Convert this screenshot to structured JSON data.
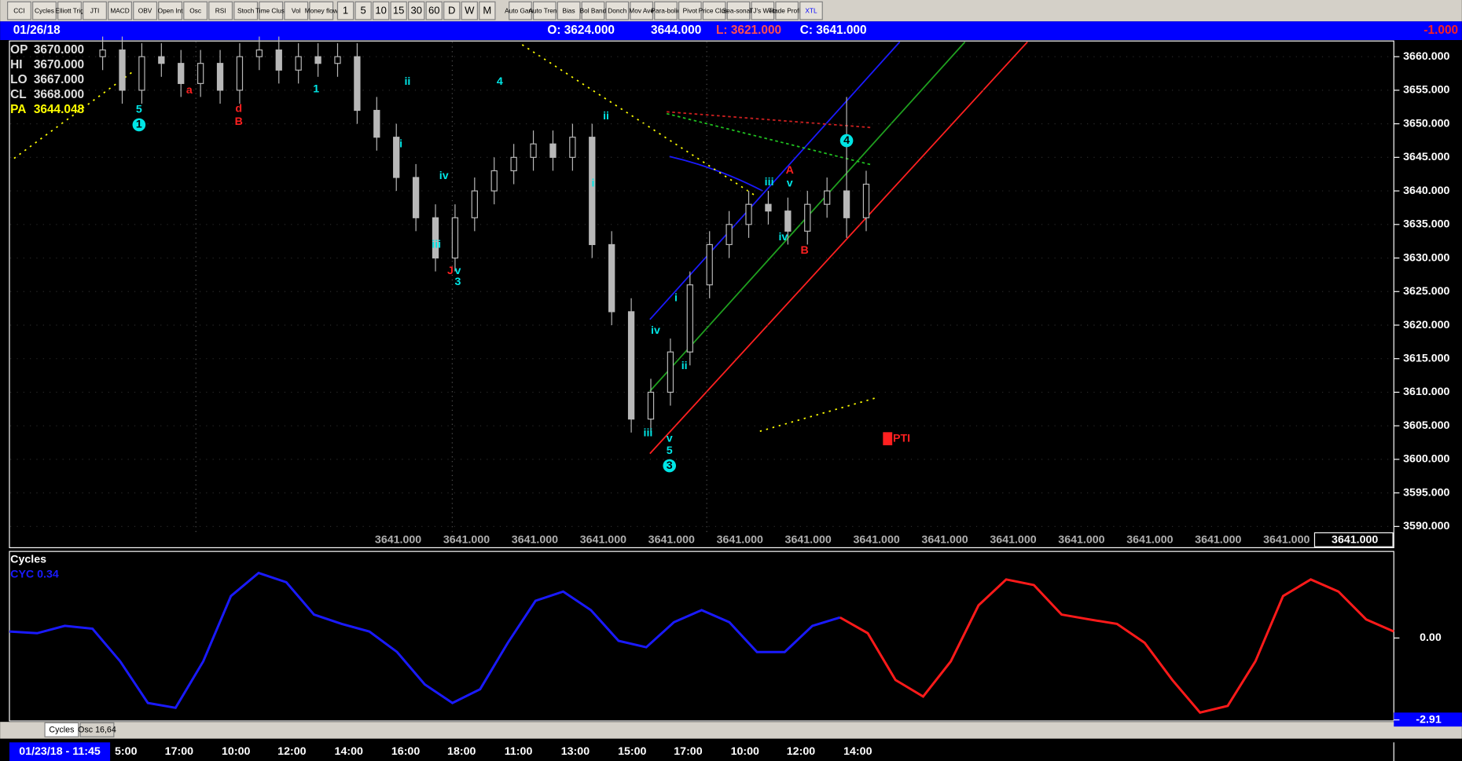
{
  "toolbar": {
    "indicators": [
      "CCI",
      "Cycles",
      "Elliott Trig",
      "JTI",
      "MACD",
      "OBV",
      "Open Int",
      "Osc",
      "RSI",
      "Stoch",
      "Time Clust",
      "Vol",
      "Money flow"
    ],
    "intervals": [
      "1",
      "5",
      "10",
      "15",
      "30",
      "60",
      "D",
      "W",
      "M"
    ],
    "studies": [
      "Auto Gann",
      "Auto Trend",
      "Bias",
      "Bol Band",
      "Donch",
      "Mov Ave",
      "Para-bolic",
      "Pivot",
      "Price Clust",
      "Sea-sonals",
      "TJ's Web",
      "Trade Profile",
      "XTL"
    ]
  },
  "header": {
    "date": "01/26/18",
    "open": "O: 3624.000",
    "high": "3644.000",
    "low": "L: 3621.000",
    "close": "C: 3641.000",
    "change": "-1.000"
  },
  "info": [
    {
      "label": "OP",
      "value": "3670.000"
    },
    {
      "label": "HI",
      "value": "3670.000"
    },
    {
      "label": "LO",
      "value": "3667.000"
    },
    {
      "label": "CL",
      "value": "3668.000"
    },
    {
      "label": "PA",
      "value": "3644.048"
    }
  ],
  "annotations": [
    {
      "text": "5",
      "color": "#00e5e5"
    },
    {
      "text": "1",
      "color": "#00e5e5"
    },
    {
      "text": "a",
      "color": "#ff2020"
    },
    {
      "text": "d",
      "color": "#ff2020"
    },
    {
      "text": "B",
      "color": "#ff2020"
    },
    {
      "text": "1",
      "color": "#00e5e5"
    },
    {
      "text": "ii",
      "color": "#00e5e5"
    },
    {
      "text": "i",
      "color": "#00e5e5"
    },
    {
      "text": "4",
      "color": "#00e5e5"
    },
    {
      "text": "iv",
      "color": "#00e5e5"
    },
    {
      "text": "iii",
      "color": "#00e5e5"
    },
    {
      "text": "J",
      "color": "#ff2020"
    },
    {
      "text": "v",
      "color": "#00e5e5"
    },
    {
      "text": "3",
      "color": "#00e5e5"
    },
    {
      "text": "ii",
      "color": "#00e5e5"
    },
    {
      "text": "i",
      "color": "#00e5e5"
    },
    {
      "text": "iv",
      "color": "#00e5e5"
    },
    {
      "text": "iii",
      "color": "#00e5e5"
    },
    {
      "text": "ii",
      "color": "#00e5e5"
    },
    {
      "text": "i",
      "color": "#00e5e5"
    },
    {
      "text": "v",
      "color": "#00e5e5"
    },
    {
      "text": "5",
      "color": "#00e5e5"
    },
    {
      "text": "3",
      "color": "#00e5e5"
    },
    {
      "text": "iii",
      "color": "#00e5e5"
    },
    {
      "text": "A",
      "color": "#ff2020"
    },
    {
      "text": "v",
      "color": "#00e5e5"
    },
    {
      "text": "iv",
      "color": "#00e5e5"
    },
    {
      "text": "B",
      "color": "#ff2020"
    },
    {
      "text": "4",
      "color": "#00e5e5"
    },
    {
      "text": "PTI",
      "color": "#ff2020"
    }
  ],
  "tabs": [
    "Cycles",
    "Osc 16,64"
  ],
  "chart_data": [
    {
      "type": "candlestick",
      "color": "#b8b8b8",
      "grid": true,
      "open": [
        3660,
        3661,
        3655,
        3660,
        3659,
        3656,
        3659,
        3655,
        3660,
        3661,
        3658,
        3660,
        3659,
        3660,
        3652,
        3648,
        3642,
        3636,
        3630,
        3636,
        3640,
        3643,
        3645,
        3647,
        3645,
        3648,
        3632,
        3622,
        3606,
        3610,
        3616,
        3626,
        3632,
        3635,
        3638,
        3637,
        3634,
        3638,
        3640,
        3636
      ],
      "high": [
        3663,
        3663,
        3662,
        3662,
        3661,
        3661,
        3661,
        3662,
        3663,
        3663,
        3662,
        3662,
        3662,
        3662,
        3654,
        3650,
        3644,
        3638,
        3638,
        3642,
        3645,
        3647,
        3649,
        3649,
        3650,
        3650,
        3634,
        3624,
        3612,
        3618,
        3628,
        3634,
        3637,
        3640,
        3640,
        3639,
        3640,
        3642,
        3654,
        3643
      ],
      "low": [
        3658,
        3653,
        3653,
        3657,
        3654,
        3654,
        3653,
        3653,
        3658,
        3656,
        3656,
        3657,
        3657,
        3650,
        3646,
        3640,
        3634,
        3628,
        3628,
        3634,
        3638,
        3641,
        3643,
        3643,
        3643,
        3630,
        3620,
        3604,
        3604,
        3608,
        3614,
        3624,
        3630,
        3633,
        3635,
        3632,
        3632,
        3636,
        3633,
        3634
      ],
      "close": [
        3661,
        3655,
        3660,
        3659,
        3656,
        3659,
        3655,
        3660,
        3661,
        3658,
        3660,
        3659,
        3660,
        3652,
        3648,
        3642,
        3636,
        3630,
        3636,
        3640,
        3643,
        3645,
        3647,
        3645,
        3648,
        3632,
        3622,
        3606,
        3610,
        3616,
        3626,
        3632,
        3635,
        3638,
        3637,
        3634,
        3638,
        3640,
        3636,
        3641
      ],
      "ylim": [
        3588.5,
        3662.2
      ],
      "yticks": [
        {
          "value": 3590,
          "label": "3590.000"
        },
        {
          "value": 3595,
          "label": "3595.000"
        },
        {
          "value": 3600,
          "label": "3600.000"
        },
        {
          "value": 3605,
          "label": "3605.000"
        },
        {
          "value": 3610,
          "label": "3610.000"
        },
        {
          "value": 3615,
          "label": "3615.000"
        },
        {
          "value": 3620,
          "label": "3620.000"
        },
        {
          "value": 3625,
          "label": "3625.000"
        },
        {
          "value": 3630,
          "label": "3630.000"
        },
        {
          "value": 3635,
          "label": "3635.000"
        },
        {
          "value": 3640,
          "label": "3640.000"
        },
        {
          "value": 3645,
          "label": "3645.000"
        },
        {
          "value": 3650,
          "label": "3650.000"
        },
        {
          "value": 3655,
          "label": "3655.000"
        },
        {
          "value": 3660,
          "label": "3660.000"
        }
      ],
      "footer_labels": [
        "3641.000",
        "3641.000",
        "3641.000",
        "3641.000",
        "3641.000",
        "3641.000",
        "3641.000",
        "3641.000",
        "3641.000",
        "3641.000",
        "3641.000",
        "3641.000",
        "3641.000",
        "3641.000",
        "3641.000"
      ]
    },
    {
      "type": "line",
      "title": "Cycles",
      "subtitle": "CYC 0.34",
      "ylim": [
        -2.98,
        2.81
      ],
      "yticks": [
        {
          "value": 0,
          "label": "0.00"
        },
        -2.91
      ],
      "series": [
        {
          "color": "#1a1aff",
          "values": [
            0.23,
            0.17,
            0.43,
            0.33,
            -0.83,
            -2.31,
            -2.48,
            -0.83,
            1.49,
            2.31,
            1.98,
            0.83,
            0.5,
            0.23,
            -0.5,
            -1.65,
            -2.31,
            -1.82,
            -0.17,
            1.32,
            1.65,
            0.99,
            -0.1,
            -0.33,
            0.56,
            0.99,
            0.56,
            -0.5,
            -0.5,
            0.43,
            0.73,
            null,
            null,
            null,
            null,
            null,
            null,
            null,
            null,
            null,
            null,
            null,
            null,
            null,
            null,
            null,
            null,
            null,
            null,
            null,
            null
          ]
        },
        {
          "color": "#ff1a1a",
          "values": [
            null,
            null,
            null,
            null,
            null,
            null,
            null,
            null,
            null,
            null,
            null,
            null,
            null,
            null,
            null,
            null,
            null,
            null,
            null,
            null,
            null,
            null,
            null,
            null,
            null,
            null,
            null,
            null,
            null,
            null,
            0.73,
            0.17,
            -1.49,
            -2.08,
            -0.83,
            1.16,
            2.08,
            1.88,
            0.83,
            0.66,
            0.5,
            -0.17,
            -1.49,
            -2.65,
            -2.41,
            -0.83,
            1.49,
            2.08,
            1.65,
            0.66,
            0.23
          ]
        }
      ],
      "x_labels": [
        "01/23/18 - 11:45",
        "5:00",
        "17:00",
        "10:00",
        "12:00",
        "14:00",
        "16:00",
        "18:00",
        "11:00",
        "13:00",
        "15:00",
        "17:00",
        "10:00",
        "12:00",
        "14:00"
      ]
    }
  ]
}
